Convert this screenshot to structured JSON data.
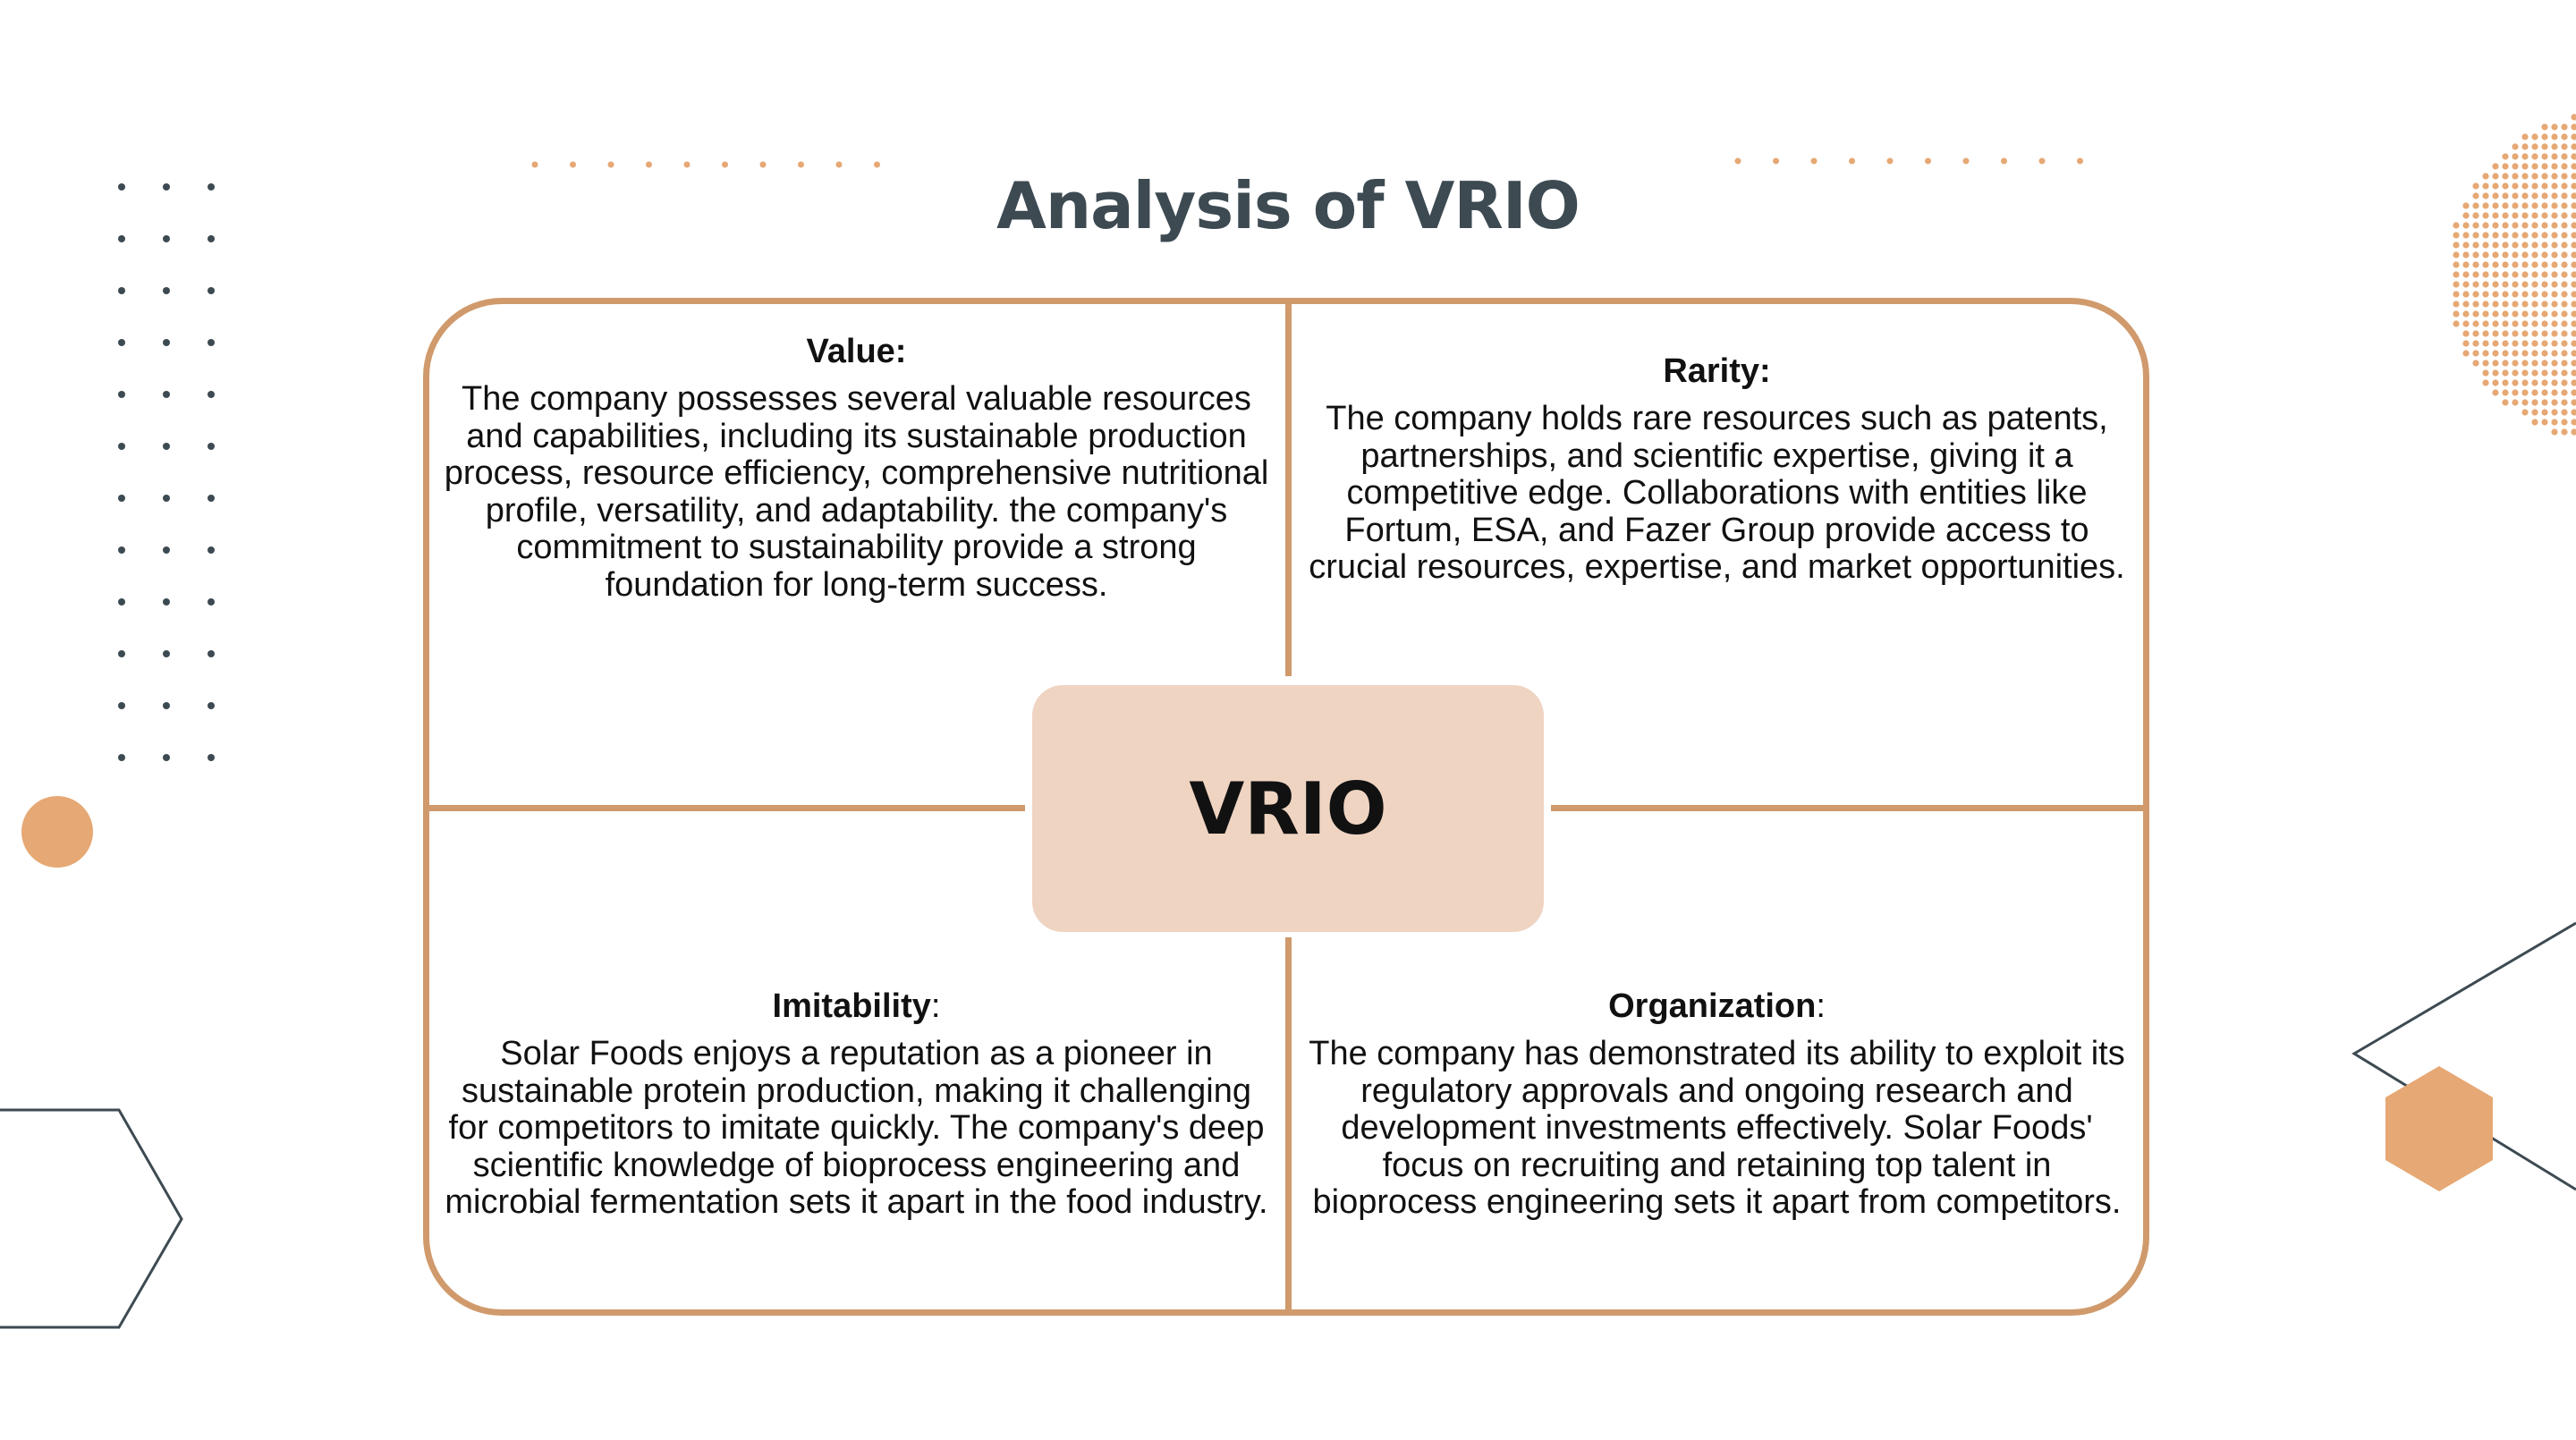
{
  "title": "Analysis of VRIO",
  "center_label": "VRIO",
  "quadrants": {
    "value": {
      "heading": "Value:",
      "text": "The company possesses several valuable resources and capabilities, including its sustainable production process, resource efficiency, comprehensive nutritional profile, versatility, and adaptability. the company's commitment to sustainability provide a strong foundation for long-term success."
    },
    "rarity": {
      "heading": "Rarity:",
      "text": "The company holds rare resources such as patents, partnerships, and scientific expertise, giving it a competitive edge. Collaborations with entities like Fortum, ESA, and Fazer Group provide access to crucial resources, expertise, and market opportunities."
    },
    "imitability": {
      "heading": "Imitability",
      "heading_suffix": ":",
      "text": "Solar Foods enjoys a reputation as a pioneer in sustainable protein production, making it challenging for competitors to imitate quickly. The company's deep scientific knowledge of bioprocess engineering and microbial fermentation sets it apart in the food industry."
    },
    "organization": {
      "heading": "Organization",
      "heading_suffix": ":",
      "text": "The company has demonstrated its ability to exploit its regulatory approvals and ongoing research and development investments effectively. Solar Foods' focus on recruiting and retaining top talent in bioprocess engineering sets it apart from competitors."
    }
  },
  "colors": {
    "accent": "#d09a6c",
    "center_fill": "#efd4c2",
    "title": "#3d4a52",
    "deco_orange": "#e6a874",
    "deco_dark": "#3d4a52"
  },
  "decorations": [
    "dot-grid",
    "title-dot-lines",
    "halftone-circle",
    "orange-circle",
    "hexagon-outline",
    "orange-hexagon",
    "triangle-outline"
  ]
}
